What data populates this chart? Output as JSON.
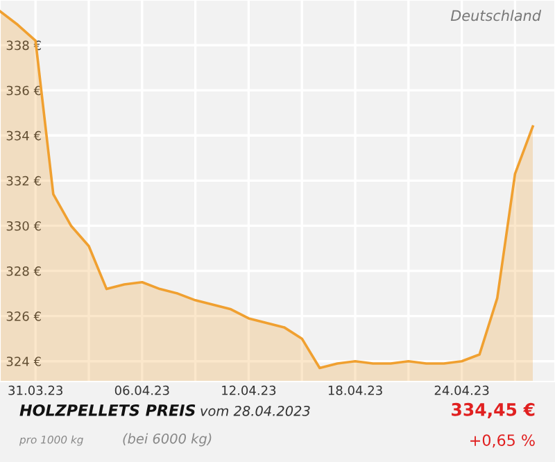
{
  "chart_data": {
    "type": "area",
    "title": "HOLZPELLETS PREIS",
    "subtitle": "vom 28.04.2023",
    "annotations": [
      "Deutschland",
      "pro 1000 kg",
      "(bei 6000 kg)",
      "334,45 €",
      "+0,65 %"
    ],
    "x": [
      "2023-03-29",
      "2023-03-30",
      "2023-03-31",
      "2023-04-01",
      "2023-04-02",
      "2023-04-03",
      "2023-04-04",
      "2023-04-05",
      "2023-04-06",
      "2023-04-07",
      "2023-04-08",
      "2023-04-09",
      "2023-04-10",
      "2023-04-11",
      "2023-04-12",
      "2023-04-13",
      "2023-04-14",
      "2023-04-15",
      "2023-04-16",
      "2023-04-17",
      "2023-04-18",
      "2023-04-19",
      "2023-04-20",
      "2023-04-21",
      "2023-04-22",
      "2023-04-23",
      "2023-04-24",
      "2023-04-25",
      "2023-04-26",
      "2023-04-27",
      "2023-04-28"
    ],
    "series": [
      {
        "color": "#f0a030",
        "values": [
          339.5,
          338.9,
          338.2,
          331.4,
          330.0,
          329.1,
          327.2,
          327.4,
          327.5,
          327.2,
          327.0,
          326.7,
          326.5,
          326.3,
          325.9,
          325.7,
          325.5,
          325.0,
          323.7,
          323.9,
          324.0,
          323.9,
          323.9,
          324.0,
          323.9,
          323.9,
          324.0,
          324.3,
          326.8,
          332.3,
          334.4
        ]
      }
    ],
    "xlim": [
      "2023-03-29",
      "2023-04-29T06:00"
    ],
    "xticks": [
      {
        "value": "2023-03-31",
        "label": "31.03.23"
      },
      {
        "value": "2023-04-03",
        "label": null
      },
      {
        "value": "2023-04-06",
        "label": "06.04.23"
      },
      {
        "value": "2023-04-09",
        "label": null
      },
      {
        "value": "2023-04-12",
        "label": "12.04.23"
      },
      {
        "value": "2023-04-15",
        "label": null
      },
      {
        "value": "2023-04-18",
        "label": "18.04.23"
      },
      {
        "value": "2023-04-21",
        "label": null
      },
      {
        "value": "2023-04-24",
        "label": "24.04.23"
      },
      {
        "value": "2023-04-27",
        "label": null
      }
    ],
    "ylim": [
      323.1,
      340.0
    ],
    "yticks": [
      {
        "value": 324,
        "label": "324 €"
      },
      {
        "value": 326,
        "label": "326 €"
      },
      {
        "value": 328,
        "label": "328 €"
      },
      {
        "value": 330,
        "label": "330 €"
      },
      {
        "value": 332,
        "label": "332 €"
      },
      {
        "value": 334,
        "label": "334 €"
      },
      {
        "value": 336,
        "label": "336 €"
      },
      {
        "value": 338,
        "label": "338 €"
      }
    ],
    "grid": true,
    "legend": false,
    "marker": "none",
    "line_style": "solid"
  }
}
